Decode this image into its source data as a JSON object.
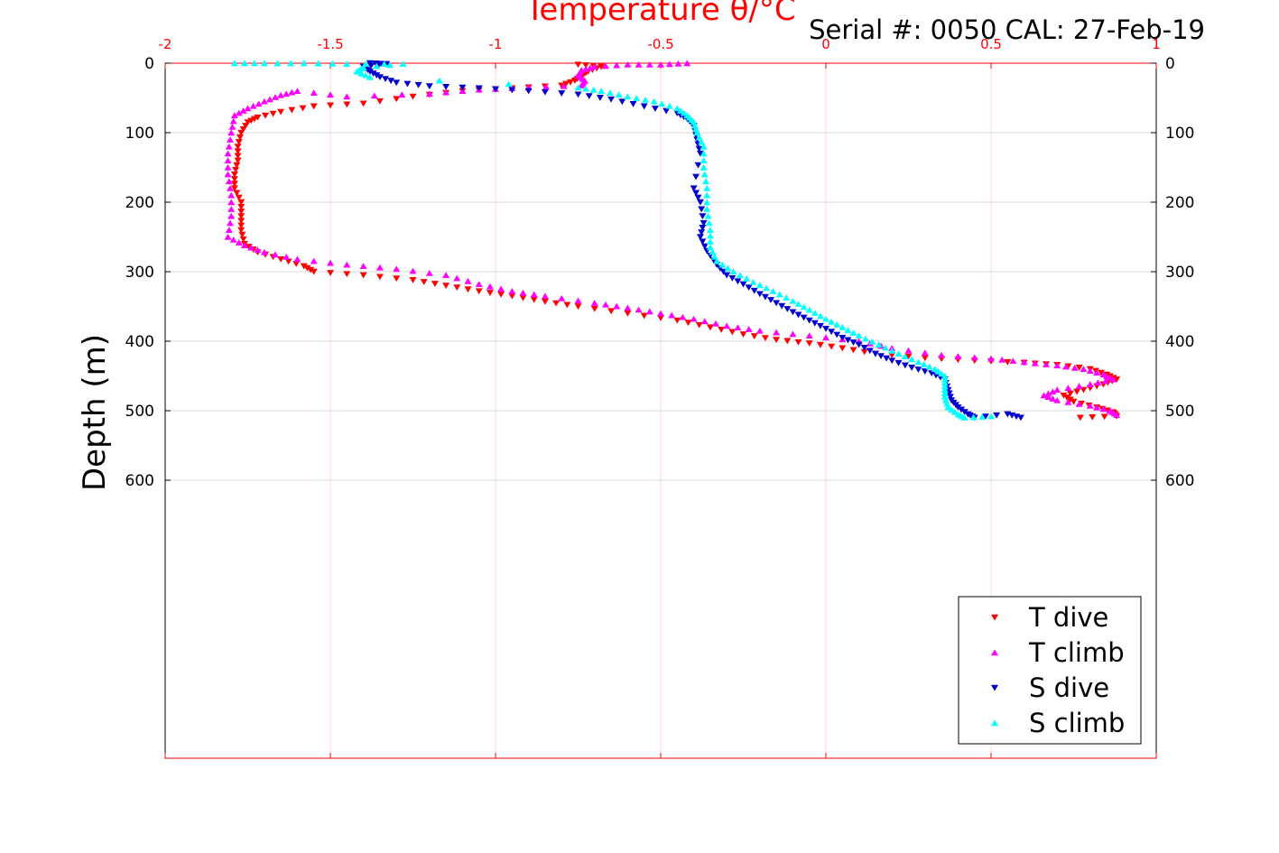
{
  "chart_data": {
    "type": "scatter",
    "title": "Serial #: 0050  CAL: 27-Feb-19",
    "xlabel": "Temperature θ/°C",
    "ylabel": "Depth (m)",
    "xlim": [
      -2,
      1
    ],
    "ylim": [
      0,
      1000
    ],
    "y_reversed": true,
    "x_axis_position": "top",
    "x_ticks": [
      "-2",
      "-1.5",
      "-1",
      "-0.5",
      "0",
      "0.5",
      "1"
    ],
    "y_ticks": [
      "0",
      "100",
      "200",
      "300",
      "400",
      "500",
      "600"
    ],
    "grid": true,
    "legend_position": "bottom-right",
    "colors": {
      "axis_x": "#ff0000",
      "grid": "#ffd6dc",
      "t_dive": "#ff0000",
      "t_climb": "#ff00ff",
      "s_dive": "#0000cd",
      "s_climb": "#00ffff"
    },
    "series": [
      {
        "name": "T dive",
        "marker": "triangle-down",
        "color": "#ff0000",
        "points": [
          [
            -0.75,
            2
          ],
          [
            -0.68,
            5
          ],
          [
            -0.72,
            12
          ],
          [
            -0.74,
            18
          ],
          [
            -0.76,
            25
          ],
          [
            -0.8,
            32
          ],
          [
            -0.95,
            36
          ],
          [
            -1.1,
            40
          ],
          [
            -1.25,
            48
          ],
          [
            -1.4,
            58
          ],
          [
            -1.55,
            62
          ],
          [
            -1.65,
            70
          ],
          [
            -1.72,
            78
          ],
          [
            -1.75,
            85
          ],
          [
            -1.77,
            100
          ],
          [
            -1.78,
            120
          ],
          [
            -1.78,
            140
          ],
          [
            -1.79,
            160
          ],
          [
            -1.79,
            180
          ],
          [
            -1.77,
            200
          ],
          [
            -1.77,
            220
          ],
          [
            -1.77,
            240
          ],
          [
            -1.76,
            260
          ],
          [
            -1.72,
            272
          ],
          [
            -1.65,
            282
          ],
          [
            -1.58,
            292
          ],
          [
            -1.55,
            300
          ],
          [
            -1.4,
            305
          ],
          [
            -1.25,
            312
          ],
          [
            -1.15,
            320
          ],
          [
            -1.05,
            328
          ],
          [
            -0.95,
            335
          ],
          [
            -0.85,
            343
          ],
          [
            -0.75,
            350
          ],
          [
            -0.6,
            360
          ],
          [
            -0.45,
            370
          ],
          [
            -0.35,
            380
          ],
          [
            -0.25,
            390
          ],
          [
            -0.15,
            398
          ],
          [
            -0.05,
            403
          ],
          [
            0.05,
            410
          ],
          [
            0.15,
            418
          ],
          [
            0.3,
            424
          ],
          [
            0.45,
            428
          ],
          [
            0.6,
            431
          ],
          [
            0.7,
            434
          ],
          [
            0.8,
            440
          ],
          [
            0.85,
            448
          ],
          [
            0.88,
            455
          ],
          [
            0.84,
            462
          ],
          [
            0.78,
            470
          ],
          [
            0.72,
            478
          ],
          [
            0.75,
            487
          ],
          [
            0.82,
            495
          ],
          [
            0.87,
            502
          ],
          [
            0.88,
            508
          ],
          [
            0.77,
            510
          ]
        ]
      },
      {
        "name": "T climb",
        "marker": "triangle-up",
        "color": "#ff00ff",
        "points": [
          [
            -0.42,
            0
          ],
          [
            -0.5,
            2
          ],
          [
            -0.6,
            2
          ],
          [
            -0.7,
            5
          ],
          [
            -0.74,
            10
          ],
          [
            -0.75,
            18
          ],
          [
            -0.73,
            25
          ],
          [
            -0.74,
            32
          ],
          [
            -0.9,
            35
          ],
          [
            -1.05,
            38
          ],
          [
            -1.2,
            44
          ],
          [
            -1.45,
            48
          ],
          [
            -1.6,
            40
          ],
          [
            -1.65,
            46
          ],
          [
            -1.7,
            55
          ],
          [
            -1.75,
            65
          ],
          [
            -1.79,
            75
          ],
          [
            -1.8,
            100
          ],
          [
            -1.81,
            130
          ],
          [
            -1.81,
            160
          ],
          [
            -1.8,
            190
          ],
          [
            -1.8,
            220
          ],
          [
            -1.81,
            250
          ],
          [
            -1.76,
            262
          ],
          [
            -1.7,
            272
          ],
          [
            -1.6,
            282
          ],
          [
            -1.45,
            290
          ],
          [
            -1.3,
            296
          ],
          [
            -1.15,
            305
          ],
          [
            -1.05,
            318
          ],
          [
            -0.95,
            328
          ],
          [
            -0.85,
            335
          ],
          [
            -0.7,
            345
          ],
          [
            -0.6,
            352
          ],
          [
            -0.5,
            360
          ],
          [
            -0.4,
            368
          ],
          [
            -0.3,
            378
          ],
          [
            -0.2,
            385
          ],
          [
            -0.05,
            392
          ],
          [
            0.1,
            400
          ],
          [
            0.2,
            410
          ],
          [
            0.35,
            420
          ],
          [
            0.5,
            425
          ],
          [
            0.6,
            430
          ],
          [
            0.7,
            435
          ],
          [
            0.78,
            440
          ],
          [
            0.84,
            448
          ],
          [
            0.87,
            455
          ],
          [
            0.8,
            462
          ],
          [
            0.7,
            470
          ],
          [
            0.66,
            478
          ],
          [
            0.7,
            485
          ],
          [
            0.8,
            493
          ],
          [
            0.86,
            500
          ],
          [
            0.88,
            506
          ]
        ]
      },
      {
        "name": "S dive",
        "marker": "triangle-down",
        "color": "#0000cd",
        "points": [
          [
            -1.38,
            0
          ],
          [
            -1.33,
            1
          ],
          [
            -1.4,
            5
          ],
          [
            -1.38,
            12
          ],
          [
            -1.35,
            20
          ],
          [
            -1.3,
            28
          ],
          [
            -1.2,
            33
          ],
          [
            -1.05,
            36
          ],
          [
            -0.9,
            40
          ],
          [
            -0.75,
            45
          ],
          [
            -0.65,
            52
          ],
          [
            -0.55,
            62
          ],
          [
            -0.45,
            72
          ],
          [
            -0.42,
            80
          ],
          [
            -0.4,
            90
          ],
          [
            -0.39,
            110
          ],
          [
            -0.38,
            130
          ],
          [
            -0.4,
            180
          ],
          [
            -0.38,
            200
          ],
          [
            -0.37,
            230
          ],
          [
            -0.38,
            250
          ],
          [
            -0.36,
            270
          ],
          [
            -0.33,
            290
          ],
          [
            -0.3,
            305
          ],
          [
            -0.25,
            318
          ],
          [
            -0.2,
            332
          ],
          [
            -0.15,
            345
          ],
          [
            -0.1,
            358
          ],
          [
            -0.05,
            370
          ],
          [
            0.0,
            382
          ],
          [
            0.05,
            395
          ],
          [
            0.1,
            405
          ],
          [
            0.15,
            418
          ],
          [
            0.2,
            428
          ],
          [
            0.26,
            438
          ],
          [
            0.32,
            446
          ],
          [
            0.36,
            455
          ],
          [
            0.37,
            470
          ],
          [
            0.38,
            485
          ],
          [
            0.4,
            495
          ],
          [
            0.43,
            505
          ],
          [
            0.45,
            510
          ],
          [
            0.55,
            505
          ],
          [
            0.59,
            510
          ]
        ]
      },
      {
        "name": "S climb",
        "marker": "triangle-up",
        "color": "#00ffff",
        "points": [
          [
            -1.79,
            0
          ],
          [
            -1.7,
            0
          ],
          [
            -1.58,
            0
          ],
          [
            -1.45,
            1
          ],
          [
            -1.28,
            1
          ],
          [
            -1.4,
            6
          ],
          [
            -1.42,
            12
          ],
          [
            -1.38,
            20
          ],
          [
            -0.75,
            35
          ],
          [
            -0.68,
            40
          ],
          [
            -0.6,
            48
          ],
          [
            -0.52,
            55
          ],
          [
            -0.45,
            65
          ],
          [
            -0.42,
            75
          ],
          [
            -0.4,
            85
          ],
          [
            -0.39,
            100
          ],
          [
            -0.37,
            120
          ],
          [
            -0.37,
            150
          ],
          [
            -0.36,
            180
          ],
          [
            -0.36,
            210
          ],
          [
            -0.35,
            240
          ],
          [
            -0.35,
            265
          ],
          [
            -0.33,
            285
          ],
          [
            -0.28,
            300
          ],
          [
            -0.22,
            315
          ],
          [
            -0.16,
            328
          ],
          [
            -0.1,
            342
          ],
          [
            -0.05,
            355
          ],
          [
            0.0,
            368
          ],
          [
            0.05,
            380
          ],
          [
            0.1,
            392
          ],
          [
            0.16,
            405
          ],
          [
            0.22,
            418
          ],
          [
            0.28,
            430
          ],
          [
            0.33,
            440
          ],
          [
            0.36,
            450
          ],
          [
            0.36,
            465
          ],
          [
            0.36,
            480
          ],
          [
            0.37,
            495
          ],
          [
            0.4,
            505
          ],
          [
            0.42,
            510
          ],
          [
            0.5,
            508
          ]
        ]
      }
    ]
  }
}
